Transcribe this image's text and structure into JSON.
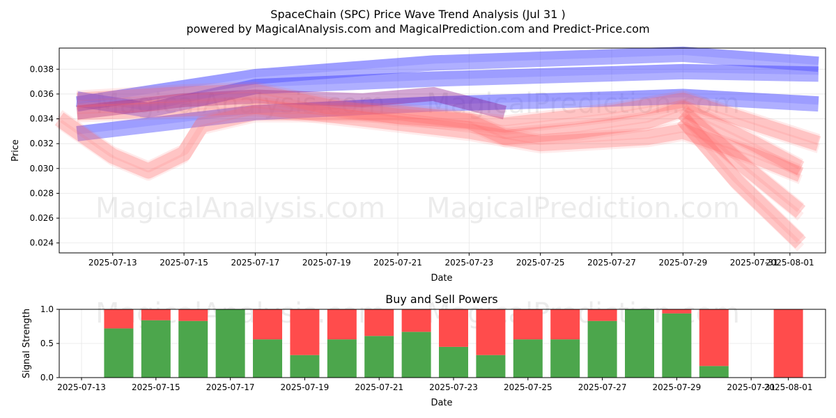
{
  "title_line1": "SpaceChain (SPC) Price Wave Trend Analysis (Jul 31 )",
  "title_line2": "powered by MagicalAnalysis.com and MagicalPrediction.com and Predict-Price.com",
  "watermarks": [
    "MagicalAnalysis.com",
    "MagicalPrediction.com"
  ],
  "colors": {
    "buy": "#4ca64c",
    "sell": "#ff4c4c",
    "blue_band": "#4d4dff",
    "red_band": "#ff6666"
  },
  "chart_data": [
    {
      "type": "area",
      "title": "",
      "xlabel": "Date",
      "ylabel": "Price",
      "ylim": [
        0.0232,
        0.0397
      ],
      "xlim": [
        "2025-07-11.5",
        "2025-08-02.0"
      ],
      "grid": true,
      "x_ticks": [
        "2025-07-13",
        "2025-07-15",
        "2025-07-17",
        "2025-07-19",
        "2025-07-21",
        "2025-07-23",
        "2025-07-25",
        "2025-07-27",
        "2025-07-29",
        "2025-07-31",
        "2025-08-01"
      ],
      "y_ticks": [
        "0.024",
        "0.026",
        "0.028",
        "0.030",
        "0.032",
        "0.034",
        "0.036",
        "0.038"
      ],
      "series": [
        {
          "color": "blue",
          "x": [
            "2025-07-12",
            "2025-07-17",
            "2025-07-22",
            "2025-07-27",
            "2025-07-29",
            "2025-08-01.8"
          ],
          "y": [
            0.0328,
            0.0345,
            0.0352,
            0.0356,
            0.0358,
            0.0352
          ]
        },
        {
          "color": "blue",
          "x": [
            "2025-07-12",
            "2025-07-14",
            "2025-07-17",
            "2025-07-22",
            "2025-07-29",
            "2025-08-01.8"
          ],
          "y": [
            0.0356,
            0.0347,
            0.0366,
            0.0372,
            0.0378,
            0.0376
          ]
        },
        {
          "color": "blue",
          "x": [
            "2025-07-12",
            "2025-07-17",
            "2025-07-22",
            "2025-07-27",
            "2025-07-29",
            "2025-08-01.8"
          ],
          "y": [
            0.0352,
            0.0374,
            0.0385,
            0.039,
            0.0392,
            0.0384
          ]
        },
        {
          "color": "purple",
          "x": [
            "2025-07-12",
            "2025-07-15",
            "2025-07-17",
            "2025-07-20",
            "2025-07-22",
            "2025-07-24"
          ],
          "y": [
            0.0345,
            0.0355,
            0.0358,
            0.0355,
            0.036,
            0.0345
          ]
        },
        {
          "color": "red",
          "x": [
            "2025-07-11.5",
            "2025-07-13",
            "2025-07-14",
            "2025-07-15",
            "2025-07-15.5",
            "2025-07-17",
            "2025-07-21",
            "2025-07-24",
            "2025-07-27",
            "2025-07-29",
            "2025-08-01.8"
          ],
          "y": [
            0.034,
            0.031,
            0.0298,
            0.0312,
            0.0335,
            0.0345,
            0.0345,
            0.0335,
            0.0345,
            0.0355,
            0.032
          ]
        },
        {
          "color": "red",
          "x": [
            "2025-07-12",
            "2025-07-15",
            "2025-07-17",
            "2025-07-19",
            "2025-07-21",
            "2025-07-23",
            "2025-07-24",
            "2025-07-26",
            "2025-07-28",
            "2025-07-29",
            "2025-07-31",
            "2025-08-01.3"
          ],
          "y": [
            0.0355,
            0.036,
            0.0362,
            0.035,
            0.0342,
            0.0338,
            0.0325,
            0.033,
            0.0338,
            0.0348,
            0.032,
            0.03
          ]
        },
        {
          "color": "red",
          "x": [
            "2025-07-12",
            "2025-07-17",
            "2025-07-20",
            "2025-07-23",
            "2025-07-25",
            "2025-07-28",
            "2025-07-29",
            "2025-07-31",
            "2025-08-01.3"
          ],
          "y": [
            0.0345,
            0.035,
            0.034,
            0.033,
            0.032,
            0.0325,
            0.033,
            0.031,
            0.0295
          ]
        },
        {
          "color": "red",
          "x": [
            "2025-07-29",
            "2025-07-30.5",
            "2025-08-01.3"
          ],
          "y": [
            0.034,
            0.029,
            0.024
          ]
        },
        {
          "color": "red",
          "x": [
            "2025-07-29",
            "2025-07-30.8",
            "2025-08-01.3"
          ],
          "y": [
            0.0345,
            0.03,
            0.0265
          ]
        }
      ]
    },
    {
      "type": "bar",
      "title": "Buy and Sell Powers",
      "xlabel": "Date",
      "ylabel": "Signal Strength",
      "ylim": [
        0,
        1.0
      ],
      "grid": true,
      "x_ticks": [
        "2025-07-13",
        "2025-07-15",
        "2025-07-17",
        "2025-07-19",
        "2025-07-21",
        "2025-07-23",
        "2025-07-25",
        "2025-07-27",
        "2025-07-29",
        "2025-07-31",
        "2025-08-01"
      ],
      "y_ticks": [
        "0.0",
        "0.5",
        "1.0"
      ],
      "categories": [
        "2025-07-14",
        "2025-07-15",
        "2025-07-16",
        "2025-07-17",
        "2025-07-18",
        "2025-07-19",
        "2025-07-20",
        "2025-07-21",
        "2025-07-22",
        "2025-07-23",
        "2025-07-24",
        "2025-07-25",
        "2025-07-26",
        "2025-07-27",
        "2025-07-28",
        "2025-07-29",
        "2025-07-30",
        "2025-08-01"
      ],
      "series": [
        {
          "name": "Buy",
          "values": [
            0.72,
            0.84,
            0.83,
            1.0,
            0.56,
            0.33,
            0.56,
            0.61,
            0.67,
            0.45,
            0.33,
            0.56,
            0.56,
            0.83,
            1.0,
            0.94,
            0.17,
            0.0
          ]
        },
        {
          "name": "Sell",
          "values": [
            0.28,
            0.16,
            0.17,
            0.0,
            0.44,
            0.67,
            0.44,
            0.39,
            0.33,
            0.55,
            0.67,
            0.44,
            0.44,
            0.17,
            0.0,
            0.06,
            0.83,
            1.0
          ]
        }
      ]
    }
  ]
}
